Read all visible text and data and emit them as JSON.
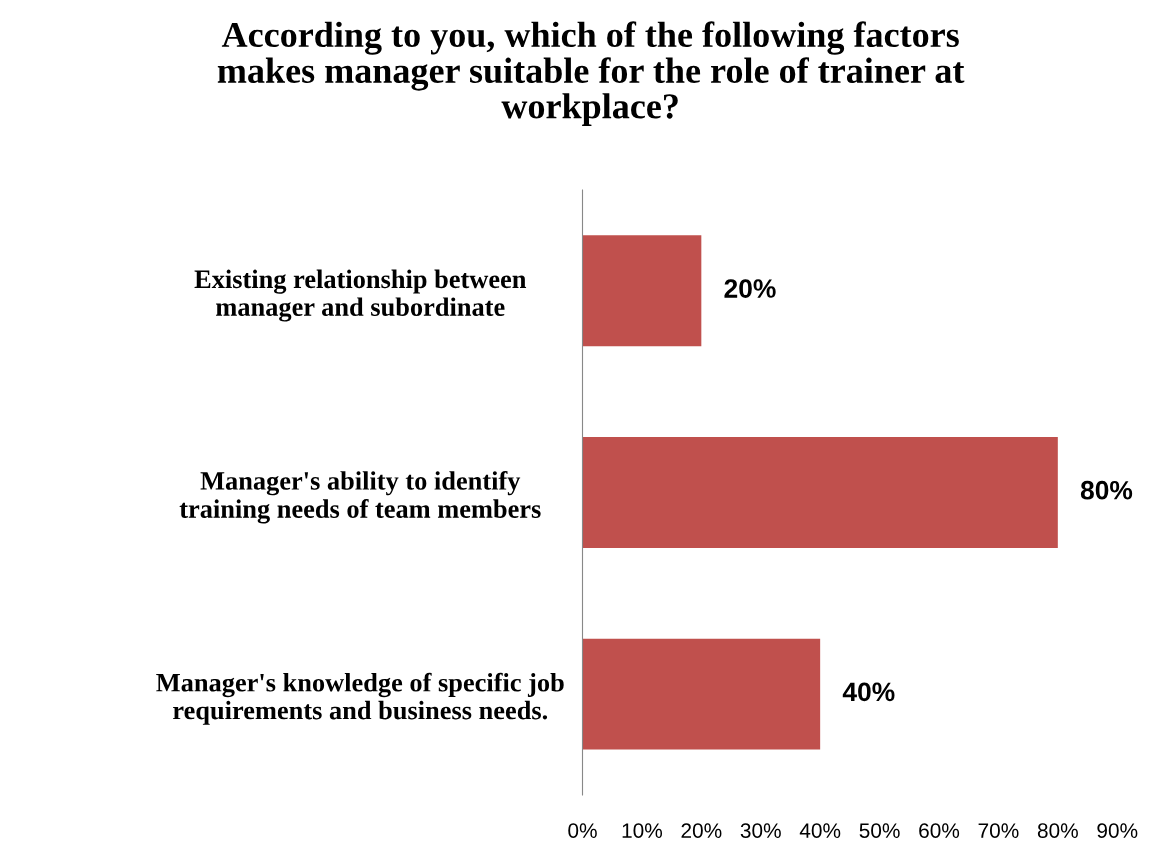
{
  "chart_data": {
    "type": "bar",
    "orientation": "horizontal",
    "title": "According to you, which of the following factors\nmakes manager suitable for the role of trainer at\nworkplace?",
    "categories": [
      "Existing relationship between\nmanager and subordinate",
      "Manager's ability to identify\ntraining needs of team members",
      "Manager's knowledge of specific job\nrequirements and business needs."
    ],
    "values": [
      20,
      80,
      40
    ],
    "color": "#c0504d",
    "value_labels": [
      "20%",
      "80%",
      "40%"
    ],
    "xlim": [
      0,
      90
    ],
    "xticks": [
      {
        "value": 0,
        "label": "0%"
      },
      {
        "value": 10,
        "label": "10%"
      },
      {
        "value": 20,
        "label": "20%"
      },
      {
        "value": 30,
        "label": "30%"
      },
      {
        "value": 40,
        "label": "40%"
      },
      {
        "value": 50,
        "label": "50%"
      },
      {
        "value": 60,
        "label": "60%"
      },
      {
        "value": 70,
        "label": "70%"
      },
      {
        "value": 80,
        "label": "80%"
      },
      {
        "value": 90,
        "label": "90%"
      }
    ],
    "grid": false,
    "legend": false
  }
}
